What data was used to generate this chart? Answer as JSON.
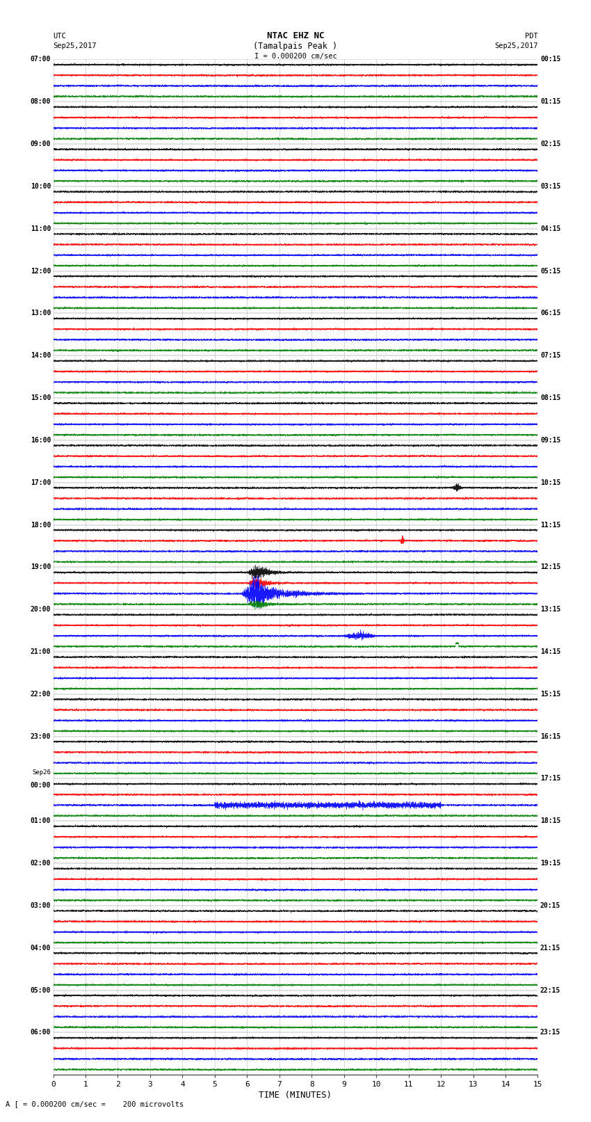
{
  "title_line1": "NTAC EHZ NC",
  "title_line2": "(Tamalpais Peak )",
  "title_scale": "I = 0.000200 cm/sec",
  "left_header_line1": "UTC",
  "left_header_line2": "Sep25,2017",
  "right_header_line1": "PDT",
  "right_header_line2": "Sep25,2017",
  "xlabel": "TIME (MINUTES)",
  "bottom_note": "A [ = 0.000200 cm/sec =    200 microvolts",
  "utc_labels": [
    "07:00",
    "08:00",
    "09:00",
    "10:00",
    "11:00",
    "12:00",
    "13:00",
    "14:00",
    "15:00",
    "16:00",
    "17:00",
    "18:00",
    "19:00",
    "20:00",
    "21:00",
    "22:00",
    "23:00",
    "Sep26\n00:00",
    "01:00",
    "02:00",
    "03:00",
    "04:00",
    "05:00",
    "06:00"
  ],
  "pdt_labels": [
    "00:15",
    "01:15",
    "02:15",
    "03:15",
    "04:15",
    "05:15",
    "06:15",
    "07:15",
    "08:15",
    "09:15",
    "10:15",
    "11:15",
    "12:15",
    "13:15",
    "14:15",
    "15:15",
    "16:15",
    "17:15",
    "18:15",
    "19:15",
    "20:15",
    "21:15",
    "22:15",
    "23:15"
  ],
  "n_rows": 24,
  "n_minutes": 15,
  "sample_rate": 10,
  "background_color": "#ffffff",
  "grid_color": "#bbbbbb",
  "colors": [
    "black",
    "red",
    "blue",
    "green"
  ],
  "noise_amplitude": 0.04,
  "big_event_hour": 12,
  "big_event_minute": 6.3,
  "small_black_hour": 10,
  "small_black_minute": 12.5,
  "small_red_hour": 11,
  "small_red_minute": 10.8,
  "blue_disturb_hour": 12,
  "blue_disturb_minute": 6.0,
  "blue_disturb2_hour": 13,
  "blue_disturb2_minute": 9.5,
  "blue_wide_hour": 17,
  "blue_wide_minute": 6.0,
  "green_dot_hour": 13,
  "green_dot_minute": 12.5
}
